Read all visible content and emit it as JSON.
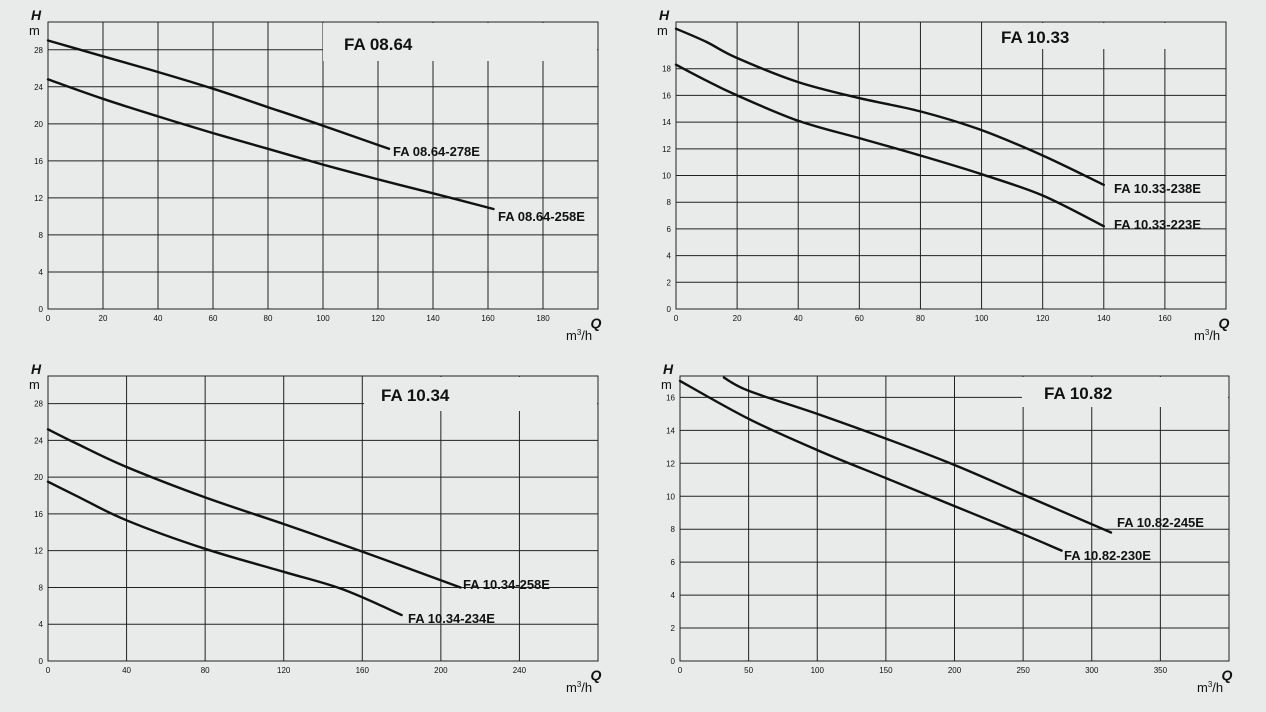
{
  "chart_data": [
    {
      "type": "line",
      "title": "FA 08.64",
      "ylabel": "H",
      "yunit": "m",
      "xlabel": "Q",
      "xunit_base": "m",
      "xunit_exp": "3",
      "xunit_tail": "/h",
      "xlim": [
        0,
        200
      ],
      "ylim": [
        0,
        31
      ],
      "xticks": [
        0,
        20,
        40,
        60,
        80,
        100,
        120,
        140,
        160,
        180
      ],
      "yticks": [
        0,
        4,
        8,
        12,
        16,
        20,
        24,
        28
      ],
      "grid": true,
      "series": [
        {
          "name": "FA 08.64-278E",
          "x": [
            0,
            20,
            40,
            60,
            80,
            100,
            124
          ],
          "y": [
            29,
            27.3,
            25.6,
            23.8,
            21.8,
            19.8,
            17.3
          ]
        },
        {
          "name": "FA 08.64-258E",
          "x": [
            0,
            20,
            40,
            60,
            80,
            100,
            120,
            140,
            162
          ],
          "y": [
            24.8,
            22.7,
            20.8,
            19,
            17.3,
            15.6,
            14,
            12.5,
            10.8
          ]
        }
      ]
    },
    {
      "type": "line",
      "title": "FA 10.33",
      "ylabel": "H",
      "yunit": "m",
      "xlabel": "Q",
      "xunit_base": "m",
      "xunit_exp": "3",
      "xunit_tail": "/h",
      "xlim": [
        0,
        180
      ],
      "ylim": [
        0,
        21.5
      ],
      "xticks": [
        0,
        20,
        40,
        60,
        80,
        100,
        120,
        140,
        160
      ],
      "yticks": [
        0,
        2,
        4,
        6,
        8,
        10,
        12,
        14,
        16,
        18
      ],
      "grid": true,
      "series": [
        {
          "name": "FA 10.33-238E",
          "x": [
            0,
            10,
            20,
            40,
            60,
            80,
            100,
            120,
            140
          ],
          "y": [
            21,
            20,
            18.8,
            17,
            15.8,
            14.8,
            13.4,
            11.5,
            9.3
          ]
        },
        {
          "name": "FA 10.33-223E",
          "x": [
            0,
            10,
            20,
            40,
            60,
            80,
            100,
            120,
            140
          ],
          "y": [
            18.3,
            17.1,
            16,
            14.1,
            12.8,
            11.5,
            10.1,
            8.5,
            6.2
          ]
        }
      ]
    },
    {
      "type": "line",
      "title": "FA 10.34",
      "ylabel": "H",
      "yunit": "m",
      "xlabel": "Q",
      "xunit_base": "m",
      "xunit_exp": "3",
      "xunit_tail": "/h",
      "xlim": [
        0,
        280
      ],
      "ylim": [
        0,
        31
      ],
      "xticks": [
        0,
        40,
        80,
        120,
        160,
        200,
        240
      ],
      "yticks": [
        0,
        4,
        8,
        12,
        16,
        20,
        24,
        28
      ],
      "grid": true,
      "series": [
        {
          "name": "FA 10.34-258E",
          "x": [
            0,
            15,
            40,
            80,
            120,
            160,
            210
          ],
          "y": [
            25.2,
            23.6,
            21.1,
            17.8,
            14.9,
            11.9,
            8
          ]
        },
        {
          "name": "FA 10.34-234E",
          "x": [
            0,
            15,
            40,
            80,
            120,
            150,
            180
          ],
          "y": [
            19.5,
            17.9,
            15.3,
            12.2,
            9.7,
            7.8,
            5
          ]
        }
      ]
    },
    {
      "type": "line",
      "title": "FA 10.82",
      "ylabel": "H",
      "yunit": "m",
      "xlabel": "Q",
      "xunit_base": "m",
      "xunit_exp": "3",
      "xunit_tail": "/h",
      "xlim": [
        0,
        400
      ],
      "ylim": [
        0,
        17.3
      ],
      "xticks": [
        0,
        50,
        100,
        150,
        200,
        250,
        300,
        350
      ],
      "yticks": [
        0,
        2,
        4,
        6,
        8,
        10,
        12,
        14,
        16
      ],
      "grid": true,
      "series": [
        {
          "name": "FA 10.82-245E",
          "x": [
            32,
            50,
            100,
            150,
            200,
            250,
            314
          ],
          "y": [
            17.2,
            16.4,
            15,
            13.5,
            11.9,
            10.1,
            7.8
          ]
        },
        {
          "name": "FA 10.82-230E",
          "x": [
            0,
            50,
            100,
            150,
            200,
            250,
            278
          ],
          "y": [
            17,
            14.7,
            12.8,
            11.1,
            9.4,
            7.7,
            6.7
          ]
        }
      ]
    }
  ]
}
